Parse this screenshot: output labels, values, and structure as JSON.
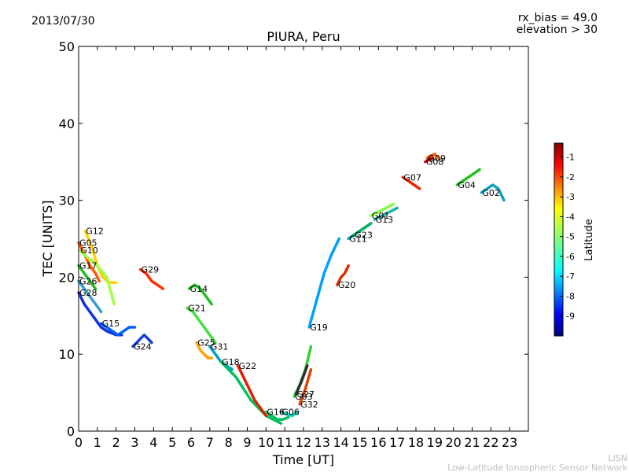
{
  "header": {
    "date": "2013/07/30",
    "rx_bias": "rx_bias = 49.0",
    "elevation": "elevation > 30"
  },
  "footer": {
    "line1": "LISN",
    "line2": "Low-Latitude Ionospheric Sensor Network"
  },
  "chart_data": {
    "type": "scatter",
    "title": "PIURA, Peru",
    "xlabel": "Time [UT]",
    "ylabel": "TEC [UNITS]",
    "xlim": [
      0,
      24
    ],
    "ylim": [
      0,
      50
    ],
    "xticks": [
      "0",
      "1",
      "2",
      "3",
      "4",
      "5",
      "6",
      "7",
      "8",
      "9",
      "10",
      "11",
      "12",
      "13",
      "14",
      "15",
      "16",
      "17",
      "18",
      "19",
      "20",
      "21",
      "22",
      "23"
    ],
    "yticks": [
      "0",
      "10",
      "20",
      "30",
      "40",
      "50"
    ],
    "grid": false,
    "colorbar": {
      "label": "Latitude",
      "range": [
        -10,
        -0.3
      ],
      "ticks": [
        "-1",
        "-2",
        "-3",
        "-4",
        "-5",
        "-6",
        "-7",
        "-8",
        "-9"
      ],
      "colormap": [
        "#00007f",
        "#0000ff",
        "#007fff",
        "#00ffff",
        "#7fff7f",
        "#ffff00",
        "#ff7f00",
        "#ff0000",
        "#7f0000"
      ]
    },
    "series": [
      {
        "name": "G05",
        "color": "#ff5a00",
        "x": [
          0.0,
          0.3,
          0.6,
          0.9,
          1.1
        ],
        "y": [
          24.5,
          23.0,
          21.5,
          20.5,
          19.5
        ]
      },
      {
        "name": "G12",
        "color": "#ffd000",
        "x": [
          0.35,
          0.7,
          1.0,
          1.3,
          1.6,
          2.0
        ],
        "y": [
          26.0,
          24.0,
          21.5,
          20.0,
          19.3,
          19.3
        ]
      },
      {
        "name": "G10",
        "color": "#a0ff40",
        "x": [
          0.05,
          0.5,
          1.0,
          1.5,
          1.9
        ],
        "y": [
          23.5,
          22.5,
          21.5,
          20.0,
          16.5
        ]
      },
      {
        "name": "G17",
        "color": "#20c020",
        "x": [
          0.0,
          0.3,
          0.6,
          0.9
        ],
        "y": [
          21.5,
          20.5,
          19.5,
          18.5
        ]
      },
      {
        "name": "G26",
        "color": "#30a0d0",
        "x": [
          0.0,
          0.3,
          0.6,
          0.9,
          1.2
        ],
        "y": [
          19.5,
          18.5,
          17.5,
          16.5,
          15.5
        ]
      },
      {
        "name": "G28",
        "color": "#1030e0",
        "x": [
          0.0,
          0.3,
          0.6,
          0.9,
          1.2,
          1.5,
          2.0,
          2.3
        ],
        "y": [
          18.0,
          16.5,
          15.5,
          14.5,
          13.5,
          13.0,
          12.5,
          12.5
        ]
      },
      {
        "name": "G15",
        "color": "#0060ff",
        "x": [
          1.2,
          1.5,
          1.8,
          2.1,
          2.4,
          2.7,
          3.0
        ],
        "y": [
          14.0,
          13.5,
          13.0,
          12.5,
          13.0,
          13.5,
          13.5
        ]
      },
      {
        "name": "G24",
        "color": "#1040d0",
        "x": [
          2.9,
          3.1,
          3.3,
          3.5,
          3.7,
          3.9
        ],
        "y": [
          11.0,
          11.5,
          12.0,
          12.5,
          12.0,
          11.5
        ]
      },
      {
        "name": "G29",
        "color": "#ff3000",
        "x": [
          3.3,
          3.6,
          3.9,
          4.2,
          4.5
        ],
        "y": [
          21.0,
          20.5,
          19.5,
          19.0,
          18.5
        ]
      },
      {
        "name": "G14",
        "color": "#20c020",
        "x": [
          5.9,
          6.2,
          6.5,
          6.8,
          7.1
        ],
        "y": [
          18.5,
          19.0,
          18.5,
          17.5,
          16.5
        ]
      },
      {
        "name": "G21",
        "color": "#40e040",
        "x": [
          5.8,
          6.1,
          6.4,
          6.7,
          7.0,
          7.3
        ],
        "y": [
          16.0,
          15.5,
          14.5,
          13.5,
          12.5,
          11.5
        ]
      },
      {
        "name": "G25",
        "color": "#ffa000",
        "x": [
          6.3,
          6.5,
          6.7,
          6.9,
          7.1
        ],
        "y": [
          11.5,
          10.5,
          10.0,
          9.5,
          9.5
        ]
      },
      {
        "name": "G31",
        "color": "#00a0d0",
        "x": [
          7.0,
          7.3,
          7.6,
          7.9,
          8.2
        ],
        "y": [
          11.0,
          10.0,
          9.0,
          8.5,
          8.0
        ]
      },
      {
        "name": "G18",
        "color": "#00c060",
        "x": [
          7.6,
          8.0,
          8.4,
          8.8,
          9.2,
          9.6,
          10.0,
          10.4,
          10.8
        ],
        "y": [
          9.0,
          8.0,
          7.0,
          5.5,
          4.0,
          3.0,
          2.0,
          1.5,
          1.0
        ]
      },
      {
        "name": "G22",
        "color": "#e02000",
        "x": [
          8.5,
          8.8,
          9.1,
          9.4,
          9.7,
          10.0
        ],
        "y": [
          8.5,
          7.0,
          5.5,
          4.0,
          3.0,
          2.0
        ]
      },
      {
        "name": "G16",
        "color": "#00c060",
        "x": [
          10.0,
          10.3,
          10.6,
          10.9,
          11.2
        ],
        "y": [
          2.5,
          2.0,
          1.5,
          1.5,
          1.8
        ]
      },
      {
        "name": "G06",
        "color": "#00d0b0",
        "x": [
          10.8,
          11.1,
          11.4,
          11.7
        ],
        "y": [
          2.5,
          2.2,
          2.0,
          2.5
        ]
      },
      {
        "name": "G03",
        "color": "#30d030",
        "x": [
          11.5,
          11.8,
          12.1,
          12.4
        ],
        "y": [
          4.5,
          6.0,
          8.0,
          11.0
        ]
      },
      {
        "name": "G27",
        "color": "#303030",
        "x": [
          11.6,
          11.9,
          12.2
        ],
        "y": [
          4.8,
          6.5,
          8.5
        ]
      },
      {
        "name": "G32",
        "color": "#e04000",
        "x": [
          11.8,
          12.1,
          12.4
        ],
        "y": [
          3.5,
          5.5,
          8.0
        ]
      },
      {
        "name": "G19",
        "color": "#00a0ff",
        "x": [
          12.3,
          12.7,
          13.1,
          13.5,
          13.9
        ],
        "y": [
          13.5,
          17.0,
          20.5,
          23.0,
          25.0
        ]
      },
      {
        "name": "G20",
        "color": "#e03000",
        "x": [
          13.8,
          14.0,
          14.2,
          14.4
        ],
        "y": [
          19.0,
          20.0,
          20.5,
          21.5
        ]
      },
      {
        "name": "G11",
        "color": "#00a0b0",
        "x": [
          14.4,
          14.7,
          15.0,
          15.3
        ],
        "y": [
          25.0,
          25.5,
          26.0,
          26.5
        ]
      },
      {
        "name": "G23",
        "color": "#00b060",
        "x": [
          14.7,
          15.0,
          15.3,
          15.6
        ],
        "y": [
          25.5,
          26.0,
          26.5,
          27.0
        ]
      },
      {
        "name": "G01",
        "color": "#80ff40",
        "x": [
          15.6,
          16.0,
          16.4,
          16.8
        ],
        "y": [
          28.0,
          28.5,
          29.0,
          29.5
        ]
      },
      {
        "name": "G13",
        "color": "#20b0a0",
        "x": [
          15.8,
          16.2,
          16.6,
          17.0
        ],
        "y": [
          27.5,
          28.0,
          28.5,
          29.0
        ]
      },
      {
        "name": "G07",
        "color": "#f02000",
        "x": [
          17.3,
          17.6,
          17.9,
          18.2
        ],
        "y": [
          33.0,
          32.5,
          32.0,
          31.5
        ]
      },
      {
        "name": "G09",
        "color": "#ff6000",
        "x": [
          18.6,
          18.8,
          19.0,
          19.2
        ],
        "y": [
          35.5,
          35.8,
          36.0,
          35.5
        ]
      },
      {
        "name": "G08",
        "color": "#d00000",
        "x": [
          18.5,
          18.7,
          18.9
        ],
        "y": [
          35.0,
          35.3,
          35.5
        ]
      },
      {
        "name": "G04",
        "color": "#20c020",
        "x": [
          20.2,
          20.5,
          20.8,
          21.1,
          21.4
        ],
        "y": [
          32.0,
          32.5,
          33.0,
          33.5,
          34.0
        ]
      },
      {
        "name": "G02",
        "color": "#10a0c0",
        "x": [
          21.5,
          21.8,
          22.1,
          22.4,
          22.7
        ],
        "y": [
          31.0,
          31.5,
          32.0,
          31.5,
          30.0
        ]
      }
    ]
  }
}
